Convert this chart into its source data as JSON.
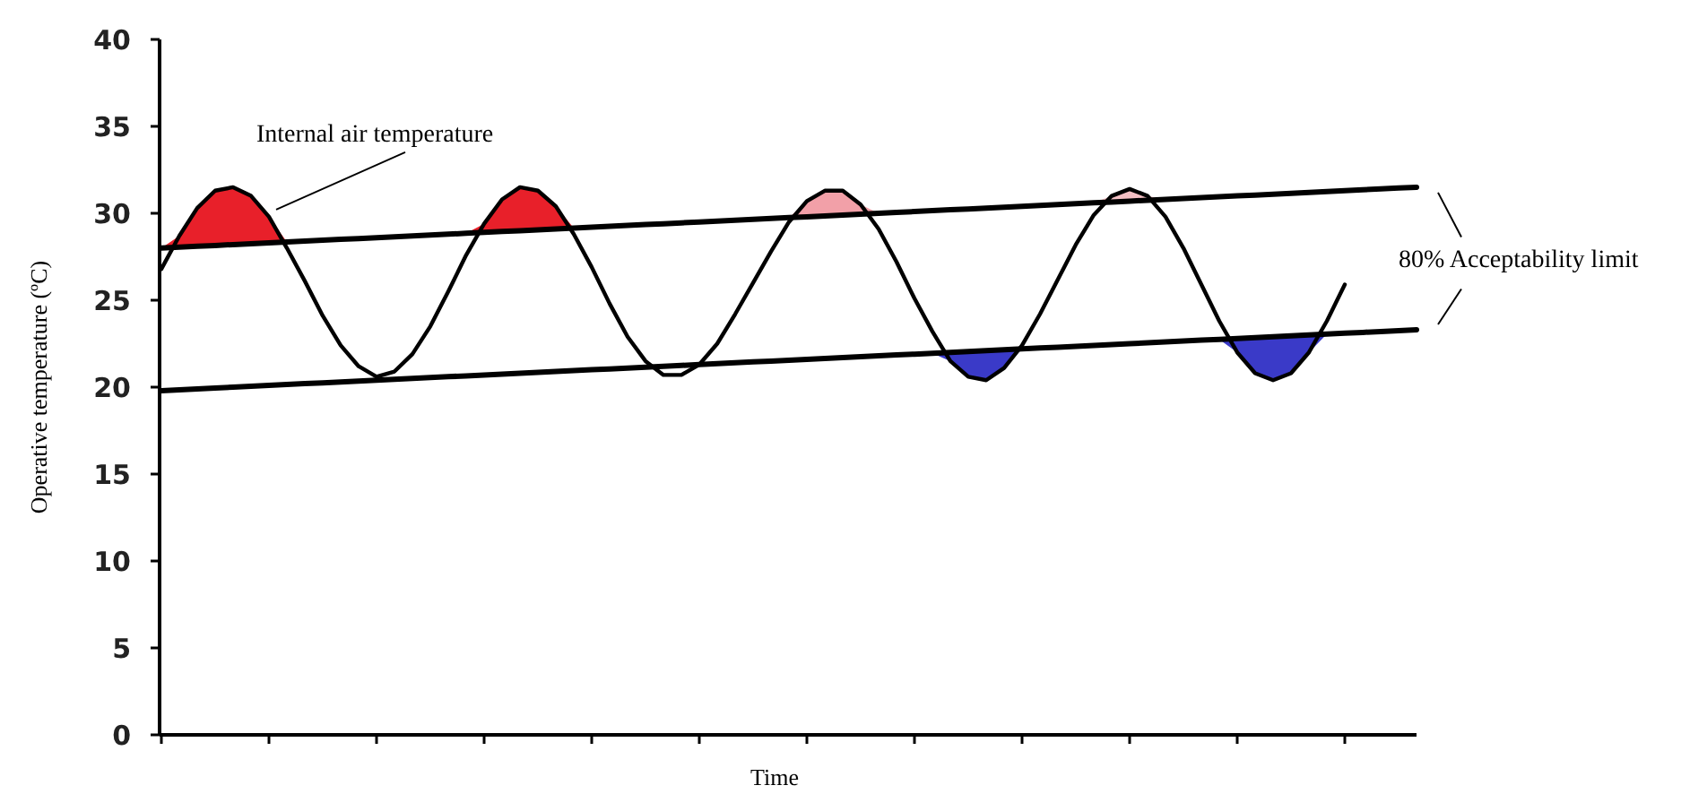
{
  "chart_data": {
    "type": "line",
    "xlabel": "Time",
    "ylabel": "Operative temperature (ºC)",
    "ylim": [
      0,
      40
    ],
    "yticks": [
      0,
      5,
      10,
      15,
      20,
      25,
      30,
      35,
      40
    ],
    "grid": false,
    "categories": [
      null,
      null,
      null,
      null,
      null,
      null,
      null,
      null,
      null,
      null,
      null,
      null,
      null,
      null,
      null,
      null,
      null,
      null,
      null,
      null,
      null,
      null,
      null,
      null,
      null,
      null,
      null,
      null,
      null,
      null,
      null,
      null,
      null,
      null,
      null,
      null,
      null,
      null,
      null,
      null,
      null,
      null,
      null,
      null,
      null,
      null,
      null,
      null,
      null,
      null,
      null,
      null,
      null,
      null,
      null,
      null,
      null,
      null,
      null,
      null,
      null,
      null,
      null,
      null,
      null,
      null,
      null,
      null,
      null,
      null,
      null
    ],
    "series": [
      {
        "color": "#000000",
        "values": [
          26.8,
          28.7,
          30.3,
          31.3,
          31.5,
          31.0,
          29.8,
          28.0,
          26.1,
          24.1,
          22.4,
          21.2,
          20.6,
          20.9,
          21.9,
          23.5,
          25.5,
          27.6,
          29.4,
          30.8,
          31.5,
          31.3,
          30.4,
          28.8,
          26.9,
          24.8,
          22.9,
          21.5,
          20.7,
          20.7,
          21.3,
          22.5,
          24.2,
          26.0,
          27.8,
          29.5,
          30.7,
          31.3,
          31.3,
          30.5,
          29.1,
          27.2,
          25.1,
          23.2,
          21.5,
          20.6,
          20.4,
          21.1,
          22.4,
          24.2,
          26.2,
          28.2,
          29.9,
          31.0,
          31.4,
          31.0,
          29.8,
          28.0,
          25.9,
          23.8,
          22.0,
          20.8,
          20.4,
          20.8,
          22.0,
          23.8,
          25.9,
          null,
          null,
          null,
          null
        ]
      },
      {
        "color": "#000000",
        "values": [
          28.0,
          28.05,
          28.1,
          28.15,
          28.2,
          28.25,
          28.3,
          28.35,
          28.4,
          28.45,
          28.5,
          28.55,
          28.6,
          28.65,
          28.7,
          28.75,
          28.8,
          28.85,
          28.9,
          28.95,
          29.0,
          29.05,
          29.1,
          29.15,
          29.2,
          29.25,
          29.3,
          29.35,
          29.4,
          29.45,
          29.5,
          29.55,
          29.6,
          29.65,
          29.7,
          29.75,
          29.8,
          29.85,
          29.9,
          29.95,
          30.0,
          30.05,
          30.1,
          30.15,
          30.2,
          30.25,
          30.3,
          30.35,
          30.4,
          30.45,
          30.5,
          30.55,
          30.6,
          30.65,
          30.7,
          30.75,
          30.8,
          30.85,
          30.9,
          30.95,
          31.0,
          31.05,
          31.1,
          31.15,
          31.2,
          31.25,
          31.3,
          31.35,
          31.4,
          31.45,
          31.5
        ]
      },
      {
        "color": "#000000",
        "values": [
          19.8,
          19.85,
          19.9,
          19.95,
          20.0,
          20.05,
          20.1,
          20.15,
          20.2,
          20.25,
          20.3,
          20.35,
          20.4,
          20.45,
          20.5,
          20.55,
          20.6,
          20.65,
          20.7,
          20.75,
          20.8,
          20.85,
          20.9,
          20.95,
          21.0,
          21.05,
          21.1,
          21.15,
          21.2,
          21.25,
          21.3,
          21.35,
          21.4,
          21.45,
          21.5,
          21.55,
          21.6,
          21.65,
          21.7,
          21.75,
          21.8,
          21.85,
          21.9,
          21.95,
          22.0,
          22.05,
          22.1,
          22.15,
          22.2,
          22.25,
          22.3,
          22.35,
          22.4,
          22.45,
          22.5,
          22.55,
          22.6,
          22.65,
          22.7,
          22.75,
          22.8,
          22.85,
          22.9,
          22.95,
          23.0,
          23.05,
          23.1,
          23.15,
          23.2,
          23.25,
          23.3
        ]
      },
      {
        "type": "area",
        "color": "#e8202a",
        "values": [
          28.0,
          28.7,
          30.3,
          31.3,
          31.5,
          31.0,
          29.8,
          28.35,
          null,
          null,
          null,
          null,
          null,
          null,
          null,
          null,
          null,
          null,
          null,
          null,
          null,
          null,
          null,
          null,
          null,
          null,
          null,
          null,
          null,
          null,
          null,
          null,
          null,
          null,
          null,
          null,
          null,
          null,
          null,
          null,
          null,
          null,
          null,
          null,
          null,
          null,
          null,
          null,
          null,
          null,
          null,
          null,
          null,
          null,
          null,
          null,
          null,
          null,
          null,
          null,
          null,
          null,
          null,
          null,
          null,
          null,
          null,
          null,
          null,
          null,
          null
        ]
      },
      {
        "type": "area",
        "color": "#e8202a",
        "values": [
          null,
          null,
          null,
          null,
          null,
          null,
          null,
          null,
          null,
          null,
          null,
          null,
          null,
          null,
          null,
          null,
          null,
          28.85,
          29.4,
          30.8,
          31.5,
          31.3,
          30.4,
          29.15,
          null,
          null,
          null,
          null,
          null,
          null,
          null,
          null,
          null,
          null,
          null,
          null,
          null,
          null,
          null,
          null,
          null,
          null,
          null,
          null,
          null,
          null,
          null,
          null,
          null,
          null,
          null,
          null,
          null,
          null,
          null,
          null,
          null,
          null,
          null,
          null,
          null,
          null,
          null,
          null,
          null,
          null,
          null,
          null,
          null,
          null,
          null
        ]
      },
      {
        "type": "area",
        "color": "#f2a0a8",
        "values": [
          null,
          null,
          null,
          null,
          null,
          null,
          null,
          null,
          null,
          null,
          null,
          null,
          null,
          null,
          null,
          null,
          null,
          null,
          null,
          null,
          null,
          null,
          null,
          null,
          null,
          null,
          null,
          null,
          null,
          null,
          null,
          null,
          null,
          null,
          null,
          29.75,
          30.7,
          31.3,
          31.3,
          30.5,
          30.0,
          null,
          null,
          null,
          null,
          null,
          null,
          null,
          null,
          null,
          null,
          null,
          null,
          null,
          null,
          null,
          null,
          null,
          null,
          null,
          null,
          null,
          null,
          null,
          null,
          null,
          null,
          null,
          null,
          null,
          null
        ]
      },
      {
        "type": "area",
        "color": "#f4c0c4",
        "values": [
          null,
          null,
          null,
          null,
          null,
          null,
          null,
          null,
          null,
          null,
          null,
          null,
          null,
          null,
          null,
          null,
          null,
          null,
          null,
          null,
          null,
          null,
          null,
          null,
          null,
          null,
          null,
          null,
          null,
          null,
          null,
          null,
          null,
          null,
          null,
          null,
          null,
          null,
          null,
          null,
          null,
          null,
          null,
          null,
          null,
          null,
          null,
          null,
          null,
          null,
          null,
          null,
          30.6,
          31.0,
          31.4,
          31.0,
          30.8,
          null,
          null,
          null,
          null,
          null,
          null,
          null,
          null,
          null,
          null,
          null,
          null,
          null,
          null
        ]
      },
      {
        "type": "area",
        "color": "#3a3ac8",
        "values": [
          null,
          null,
          null,
          null,
          null,
          null,
          null,
          null,
          null,
          null,
          null,
          null,
          null,
          null,
          null,
          null,
          null,
          null,
          null,
          null,
          null,
          null,
          null,
          null,
          null,
          null,
          null,
          null,
          null,
          null,
          null,
          null,
          null,
          null,
          null,
          null,
          null,
          null,
          null,
          null,
          null,
          null,
          null,
          21.95,
          21.5,
          20.6,
          20.4,
          21.1,
          22.2,
          null,
          null,
          null,
          null,
          null,
          null,
          null,
          null,
          null,
          null,
          null,
          null,
          null,
          null,
          null,
          null,
          null,
          null,
          null,
          null,
          null,
          null
        ]
      },
      {
        "type": "area",
        "color": "#3a3ac8",
        "values": [
          null,
          null,
          null,
          null,
          null,
          null,
          null,
          null,
          null,
          null,
          null,
          null,
          null,
          null,
          null,
          null,
          null,
          null,
          null,
          null,
          null,
          null,
          null,
          null,
          null,
          null,
          null,
          null,
          null,
          null,
          null,
          null,
          null,
          null,
          null,
          null,
          null,
          null,
          null,
          null,
          null,
          null,
          null,
          null,
          null,
          null,
          null,
          null,
          null,
          null,
          null,
          null,
          null,
          null,
          null,
          null,
          null,
          null,
          null,
          22.75,
          22.0,
          20.8,
          20.4,
          20.8,
          22.0,
          23.05,
          null,
          null,
          null,
          null,
          null
        ]
      }
    ],
    "annotations": [
      "Internal air temperature",
      "80% Acceptability limit"
    ]
  }
}
